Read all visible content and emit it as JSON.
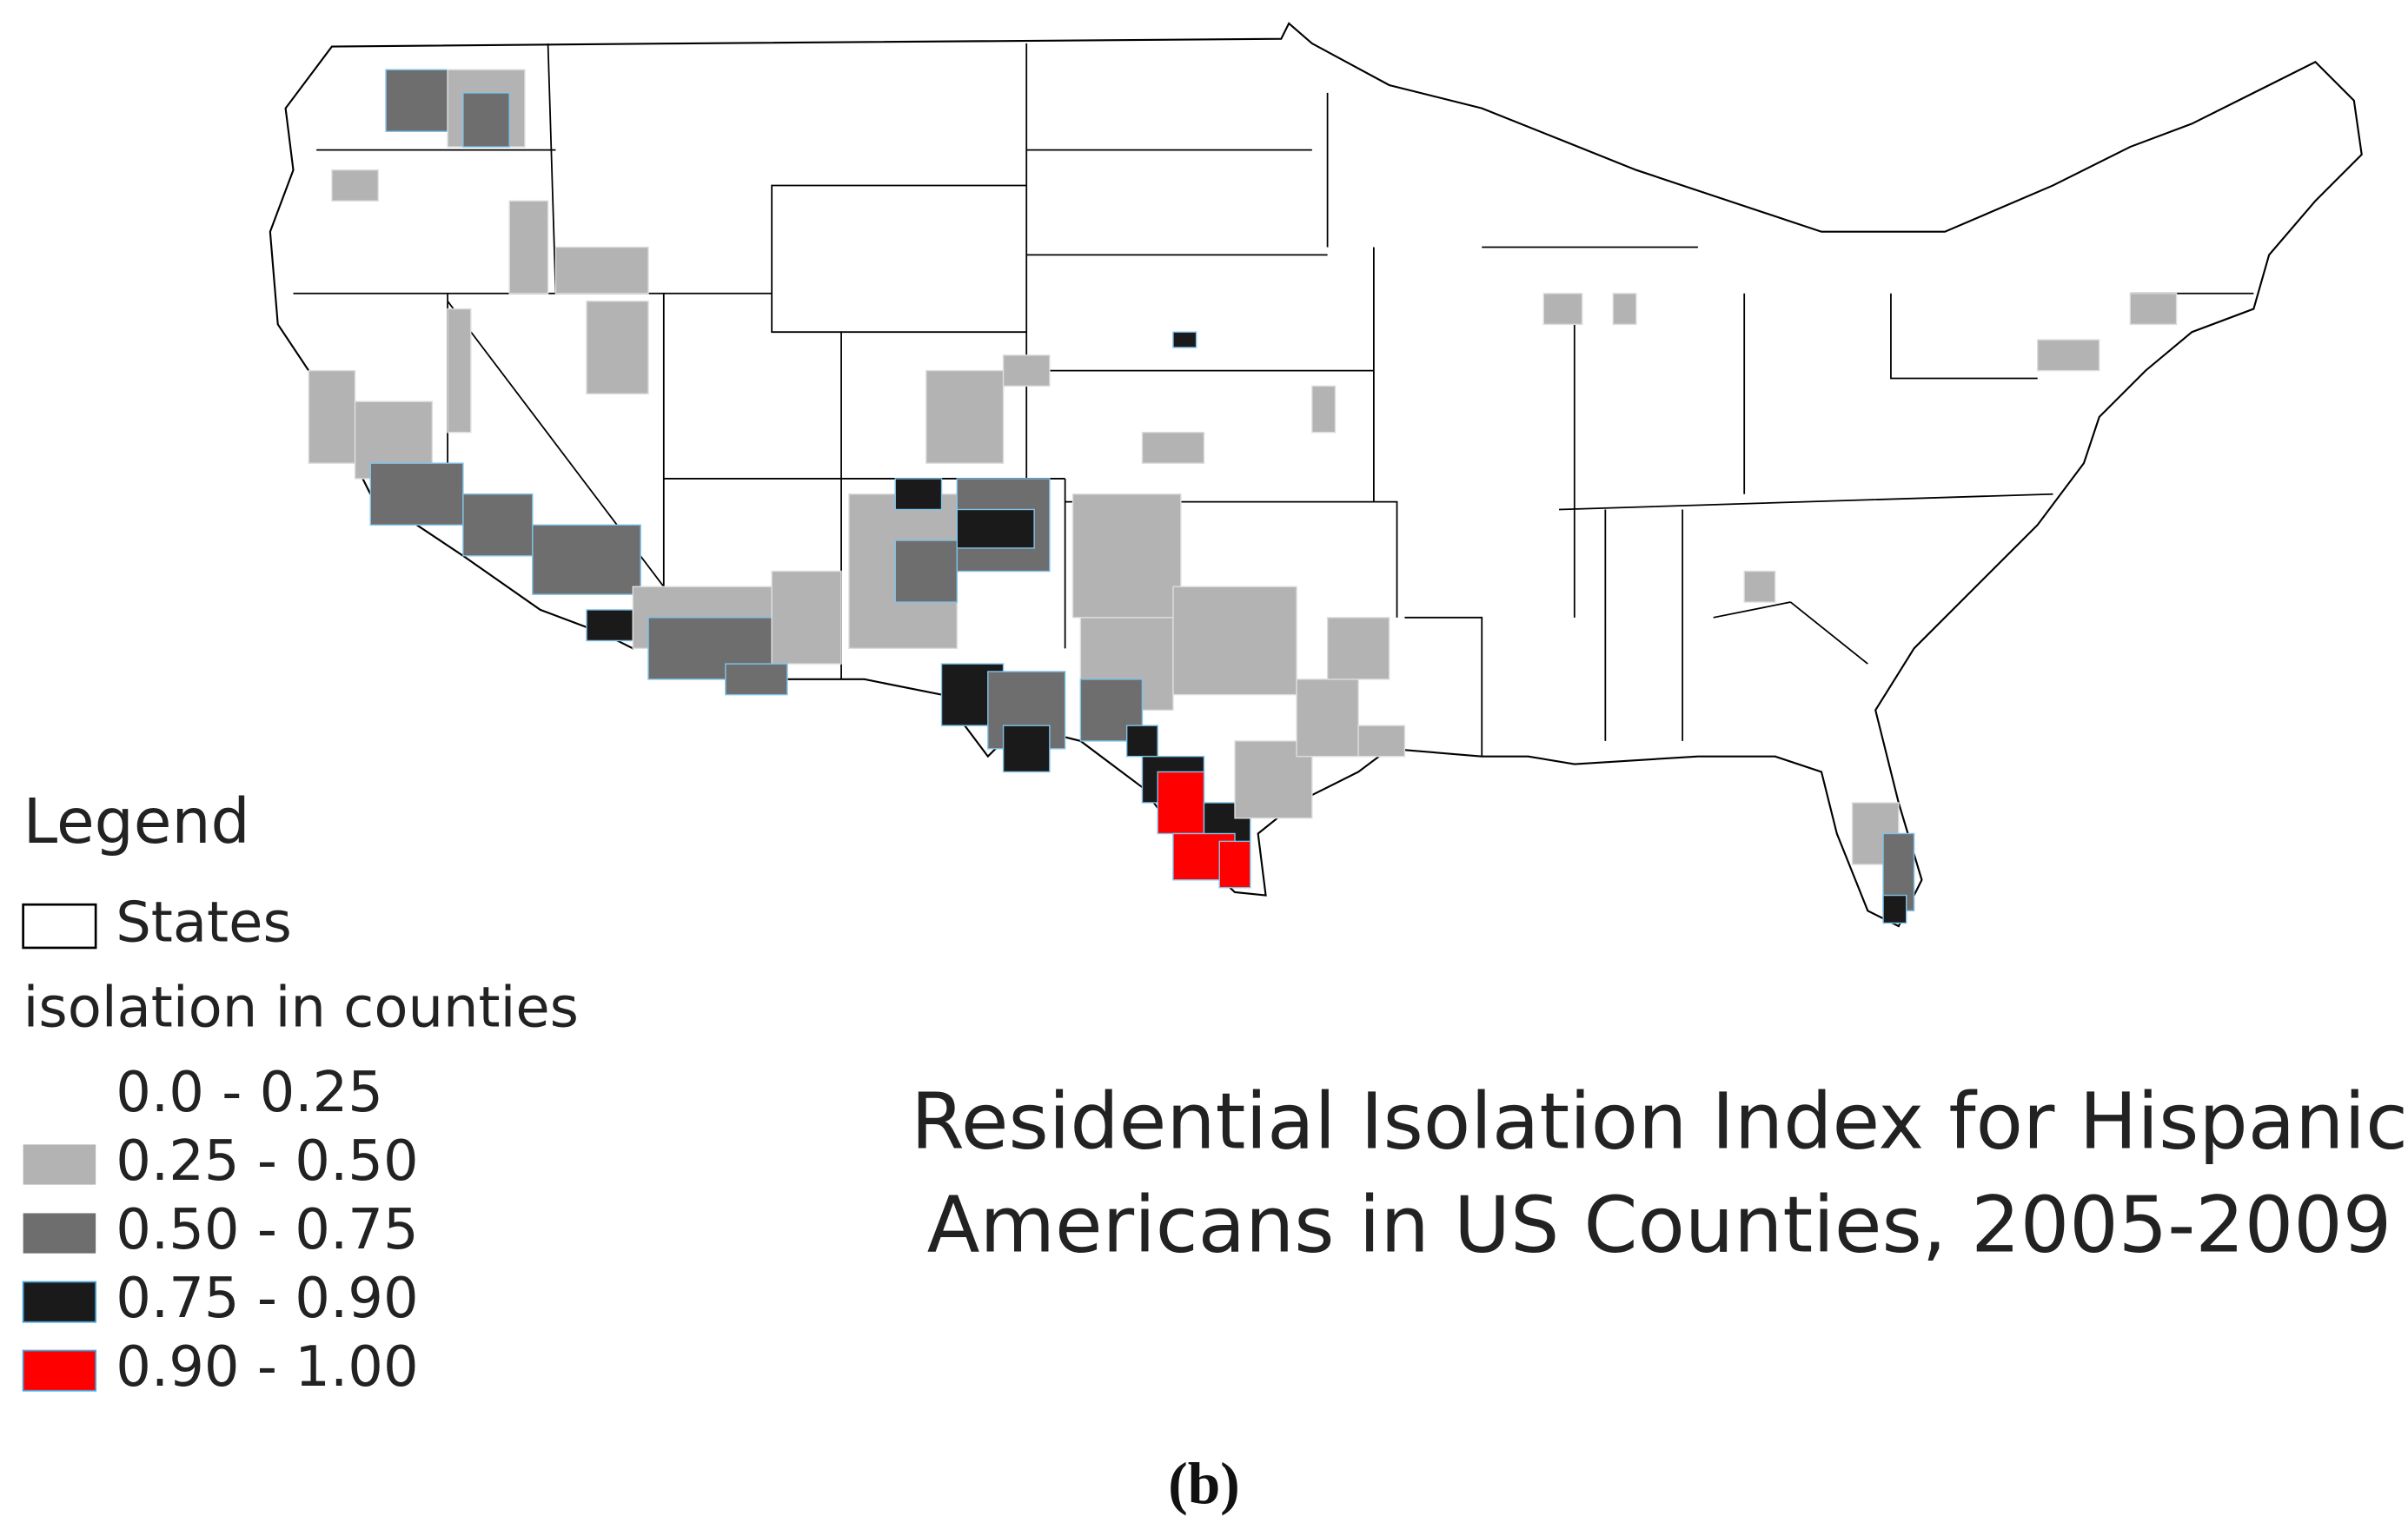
{
  "legend": {
    "title": "Legend",
    "layers": [
      {
        "label": "States",
        "fill": "#ffffff",
        "stroke": "#000000"
      }
    ],
    "field": "isolation in counties",
    "classes": [
      {
        "label": "0.0 - 0.25",
        "color": "#ffffff"
      },
      {
        "label": "0.25 - 0.50",
        "color": "#b3b3b3"
      },
      {
        "label": "0.50 - 0.75",
        "color": "#6e6e6e"
      },
      {
        "label": "0.75 - 0.90",
        "color": "#1a1a1a"
      },
      {
        "label": "0.90 - 1.00",
        "color": "#ff0000"
      }
    ]
  },
  "title": [
    "Residential Isolation Index for Hispanic",
    "Americans in US Counties, 2005-2009"
  ],
  "caption": "(b)"
}
